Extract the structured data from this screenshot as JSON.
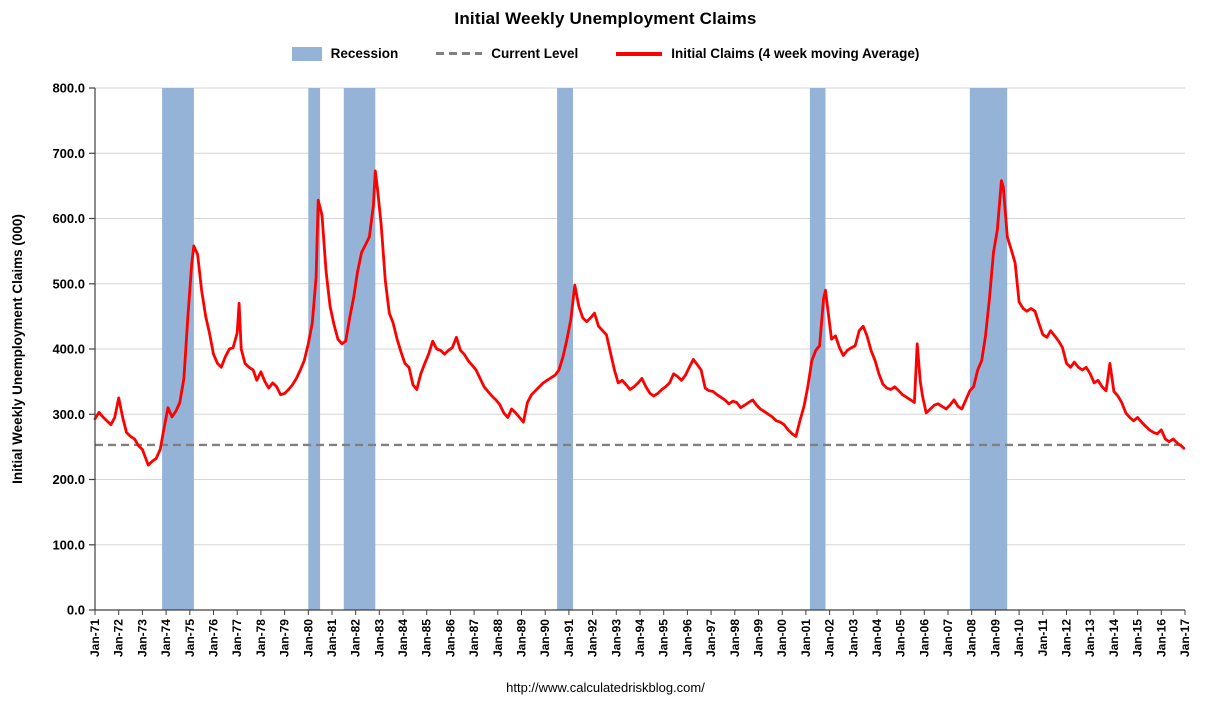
{
  "title": "Initial Weekly Unemployment Claims",
  "footer_url": "http://www.calculatedriskblog.com/",
  "legend": [
    {
      "label": "Recession",
      "type": "band",
      "color": "#95B3D7"
    },
    {
      "label": "Current Level",
      "type": "dashed-line",
      "color": "#808080"
    },
    {
      "label": "Initial Claims (4 week moving Average)",
      "type": "line",
      "color": "#FF0000"
    }
  ],
  "chart_data": {
    "type": "line",
    "title": "Initial Weekly Unemployment Claims",
    "xlabel": "",
    "ylabel": "Initial Weekly Unemployment Claims (000)",
    "ylim": [
      0,
      800
    ],
    "ytick_interval": 100,
    "ytick_labels": [
      "0.0",
      "100.0",
      "200.0",
      "300.0",
      "400.0",
      "500.0",
      "600.0",
      "700.0",
      "800.0"
    ],
    "xlim": [
      1971,
      2017
    ],
    "xtick_labels": [
      "Jan-71",
      "Jan-72",
      "Jan-73",
      "Jan-74",
      "Jan-75",
      "Jan-76",
      "Jan-77",
      "Jan-78",
      "Jan-79",
      "Jan-80",
      "Jan-81",
      "Jan-82",
      "Jan-83",
      "Jan-84",
      "Jan-85",
      "Jan-86",
      "Jan-87",
      "Jan-88",
      "Jan-89",
      "Jan-90",
      "Jan-91",
      "Jan-92",
      "Jan-93",
      "Jan-94",
      "Jan-95",
      "Jan-96",
      "Jan-97",
      "Jan-98",
      "Jan-99",
      "Jan-00",
      "Jan-01",
      "Jan-02",
      "Jan-03",
      "Jan-04",
      "Jan-05",
      "Jan-06",
      "Jan-07",
      "Jan-08",
      "Jan-09",
      "Jan-10",
      "Jan-11",
      "Jan-12",
      "Jan-13",
      "Jan-14",
      "Jan-15",
      "Jan-16",
      "Jan-17"
    ],
    "grid": "horizontal",
    "grid_color": "#D6D6D6",
    "axis_color": "#404040",
    "legend_position": "top",
    "current_level": 253,
    "current_level_color": "#808080",
    "recession_color": "#95B3D7",
    "recessions": [
      [
        1973.83,
        1975.17
      ],
      [
        1980.0,
        1980.5
      ],
      [
        1981.5,
        1982.83
      ],
      [
        1990.5,
        1991.17
      ],
      [
        2001.17,
        2001.83
      ],
      [
        2007.92,
        2009.5
      ]
    ],
    "series": [
      {
        "name": "Initial Claims (4 week moving Average)",
        "color": "#FF0000",
        "points": [
          [
            1971.0,
            293
          ],
          [
            1971.17,
            303
          ],
          [
            1971.33,
            296
          ],
          [
            1971.5,
            290
          ],
          [
            1971.67,
            284
          ],
          [
            1971.83,
            295
          ],
          [
            1972.0,
            325
          ],
          [
            1972.17,
            295
          ],
          [
            1972.33,
            272
          ],
          [
            1972.5,
            266
          ],
          [
            1972.67,
            262
          ],
          [
            1972.83,
            252
          ],
          [
            1973.0,
            246
          ],
          [
            1973.25,
            222
          ],
          [
            1973.42,
            228
          ],
          [
            1973.58,
            232
          ],
          [
            1973.75,
            246
          ],
          [
            1973.92,
            280
          ],
          [
            1974.08,
            310
          ],
          [
            1974.25,
            296
          ],
          [
            1974.42,
            305
          ],
          [
            1974.58,
            318
          ],
          [
            1974.75,
            355
          ],
          [
            1974.92,
            450
          ],
          [
            1975.08,
            530
          ],
          [
            1975.17,
            558
          ],
          [
            1975.33,
            545
          ],
          [
            1975.5,
            490
          ],
          [
            1975.67,
            450
          ],
          [
            1975.83,
            425
          ],
          [
            1976.0,
            392
          ],
          [
            1976.17,
            378
          ],
          [
            1976.33,
            372
          ],
          [
            1976.5,
            388
          ],
          [
            1976.67,
            400
          ],
          [
            1976.83,
            402
          ],
          [
            1977.0,
            425
          ],
          [
            1977.08,
            470
          ],
          [
            1977.17,
            400
          ],
          [
            1977.33,
            378
          ],
          [
            1977.5,
            372
          ],
          [
            1977.67,
            368
          ],
          [
            1977.83,
            352
          ],
          [
            1978.0,
            365
          ],
          [
            1978.17,
            350
          ],
          [
            1978.33,
            340
          ],
          [
            1978.5,
            348
          ],
          [
            1978.67,
            342
          ],
          [
            1978.83,
            330
          ],
          [
            1979.0,
            332
          ],
          [
            1979.17,
            338
          ],
          [
            1979.33,
            345
          ],
          [
            1979.5,
            355
          ],
          [
            1979.67,
            368
          ],
          [
            1979.83,
            382
          ],
          [
            1980.0,
            408
          ],
          [
            1980.17,
            440
          ],
          [
            1980.33,
            510
          ],
          [
            1980.42,
            628
          ],
          [
            1980.58,
            605
          ],
          [
            1980.75,
            520
          ],
          [
            1980.92,
            465
          ],
          [
            1981.08,
            438
          ],
          [
            1981.25,
            415
          ],
          [
            1981.42,
            408
          ],
          [
            1981.58,
            412
          ],
          [
            1981.75,
            448
          ],
          [
            1981.92,
            480
          ],
          [
            1982.08,
            518
          ],
          [
            1982.25,
            548
          ],
          [
            1982.42,
            560
          ],
          [
            1982.58,
            572
          ],
          [
            1982.75,
            620
          ],
          [
            1982.83,
            673
          ],
          [
            1982.92,
            645
          ],
          [
            1983.08,
            590
          ],
          [
            1983.25,
            505
          ],
          [
            1983.42,
            455
          ],
          [
            1983.58,
            440
          ],
          [
            1983.75,
            415
          ],
          [
            1983.92,
            395
          ],
          [
            1984.08,
            378
          ],
          [
            1984.25,
            372
          ],
          [
            1984.42,
            345
          ],
          [
            1984.58,
            338
          ],
          [
            1984.75,
            362
          ],
          [
            1984.92,
            378
          ],
          [
            1985.08,
            392
          ],
          [
            1985.25,
            412
          ],
          [
            1985.42,
            400
          ],
          [
            1985.58,
            398
          ],
          [
            1985.75,
            392
          ],
          [
            1985.92,
            398
          ],
          [
            1986.08,
            402
          ],
          [
            1986.25,
            418
          ],
          [
            1986.42,
            398
          ],
          [
            1986.58,
            392
          ],
          [
            1986.75,
            382
          ],
          [
            1986.92,
            375
          ],
          [
            1987.08,
            368
          ],
          [
            1987.25,
            355
          ],
          [
            1987.42,
            342
          ],
          [
            1987.58,
            335
          ],
          [
            1987.75,
            328
          ],
          [
            1987.92,
            322
          ],
          [
            1988.08,
            315
          ],
          [
            1988.25,
            302
          ],
          [
            1988.42,
            295
          ],
          [
            1988.58,
            308
          ],
          [
            1988.75,
            302
          ],
          [
            1988.92,
            295
          ],
          [
            1989.08,
            288
          ],
          [
            1989.25,
            318
          ],
          [
            1989.42,
            330
          ],
          [
            1989.58,
            336
          ],
          [
            1989.75,
            342
          ],
          [
            1989.92,
            348
          ],
          [
            1990.08,
            352
          ],
          [
            1990.25,
            356
          ],
          [
            1990.42,
            360
          ],
          [
            1990.58,
            368
          ],
          [
            1990.75,
            388
          ],
          [
            1990.92,
            415
          ],
          [
            1991.08,
            445
          ],
          [
            1991.25,
            498
          ],
          [
            1991.42,
            465
          ],
          [
            1991.58,
            448
          ],
          [
            1991.75,
            442
          ],
          [
            1991.92,
            448
          ],
          [
            1992.08,
            455
          ],
          [
            1992.25,
            435
          ],
          [
            1992.42,
            428
          ],
          [
            1992.58,
            422
          ],
          [
            1992.75,
            395
          ],
          [
            1992.92,
            368
          ],
          [
            1993.08,
            348
          ],
          [
            1993.25,
            352
          ],
          [
            1993.42,
            345
          ],
          [
            1993.58,
            338
          ],
          [
            1993.75,
            342
          ],
          [
            1993.92,
            348
          ],
          [
            1994.08,
            355
          ],
          [
            1994.25,
            342
          ],
          [
            1994.42,
            332
          ],
          [
            1994.58,
            328
          ],
          [
            1994.75,
            332
          ],
          [
            1994.92,
            338
          ],
          [
            1995.08,
            342
          ],
          [
            1995.25,
            348
          ],
          [
            1995.42,
            362
          ],
          [
            1995.58,
            358
          ],
          [
            1995.75,
            352
          ],
          [
            1995.92,
            360
          ],
          [
            1996.08,
            372
          ],
          [
            1996.25,
            384
          ],
          [
            1996.42,
            376
          ],
          [
            1996.58,
            368
          ],
          [
            1996.75,
            340
          ],
          [
            1996.92,
            336
          ],
          [
            1997.08,
            335
          ],
          [
            1997.25,
            330
          ],
          [
            1997.42,
            326
          ],
          [
            1997.58,
            322
          ],
          [
            1997.75,
            316
          ],
          [
            1997.92,
            320
          ],
          [
            1998.08,
            318
          ],
          [
            1998.25,
            310
          ],
          [
            1998.42,
            314
          ],
          [
            1998.58,
            318
          ],
          [
            1998.75,
            322
          ],
          [
            1998.92,
            314
          ],
          [
            1999.08,
            308
          ],
          [
            1999.25,
            304
          ],
          [
            1999.42,
            300
          ],
          [
            1999.58,
            296
          ],
          [
            1999.75,
            290
          ],
          [
            1999.92,
            288
          ],
          [
            2000.08,
            284
          ],
          [
            2000.25,
            276
          ],
          [
            2000.42,
            270
          ],
          [
            2000.58,
            266
          ],
          [
            2000.75,
            290
          ],
          [
            2000.92,
            312
          ],
          [
            2001.08,
            342
          ],
          [
            2001.25,
            382
          ],
          [
            2001.42,
            398
          ],
          [
            2001.58,
            405
          ],
          [
            2001.75,
            478
          ],
          [
            2001.83,
            490
          ],
          [
            2001.92,
            462
          ],
          [
            2002.08,
            415
          ],
          [
            2002.25,
            420
          ],
          [
            2002.42,
            402
          ],
          [
            2002.58,
            390
          ],
          [
            2002.75,
            398
          ],
          [
            2002.92,
            402
          ],
          [
            2003.08,
            405
          ],
          [
            2003.25,
            428
          ],
          [
            2003.42,
            435
          ],
          [
            2003.58,
            420
          ],
          [
            2003.75,
            398
          ],
          [
            2003.92,
            382
          ],
          [
            2004.08,
            362
          ],
          [
            2004.25,
            346
          ],
          [
            2004.42,
            340
          ],
          [
            2004.58,
            338
          ],
          [
            2004.75,
            342
          ],
          [
            2004.92,
            336
          ],
          [
            2005.08,
            330
          ],
          [
            2005.25,
            326
          ],
          [
            2005.42,
            322
          ],
          [
            2005.58,
            318
          ],
          [
            2005.7,
            408
          ],
          [
            2005.83,
            350
          ],
          [
            2005.92,
            328
          ],
          [
            2006.08,
            302
          ],
          [
            2006.25,
            308
          ],
          [
            2006.42,
            314
          ],
          [
            2006.58,
            316
          ],
          [
            2006.75,
            312
          ],
          [
            2006.92,
            308
          ],
          [
            2007.08,
            314
          ],
          [
            2007.25,
            322
          ],
          [
            2007.42,
            312
          ],
          [
            2007.58,
            308
          ],
          [
            2007.75,
            322
          ],
          [
            2007.92,
            336
          ],
          [
            2008.08,
            342
          ],
          [
            2008.25,
            368
          ],
          [
            2008.42,
            382
          ],
          [
            2008.58,
            420
          ],
          [
            2008.75,
            478
          ],
          [
            2008.92,
            548
          ],
          [
            2009.08,
            582
          ],
          [
            2009.25,
            658
          ],
          [
            2009.33,
            648
          ],
          [
            2009.5,
            572
          ],
          [
            2009.67,
            552
          ],
          [
            2009.83,
            532
          ],
          [
            2010.0,
            472
          ],
          [
            2010.17,
            462
          ],
          [
            2010.33,
            458
          ],
          [
            2010.5,
            462
          ],
          [
            2010.67,
            458
          ],
          [
            2010.83,
            440
          ],
          [
            2011.0,
            422
          ],
          [
            2011.17,
            418
          ],
          [
            2011.33,
            428
          ],
          [
            2011.5,
            420
          ],
          [
            2011.67,
            412
          ],
          [
            2011.83,
            402
          ],
          [
            2012.0,
            378
          ],
          [
            2012.17,
            372
          ],
          [
            2012.33,
            380
          ],
          [
            2012.5,
            372
          ],
          [
            2012.67,
            368
          ],
          [
            2012.83,
            372
          ],
          [
            2013.0,
            362
          ],
          [
            2013.17,
            348
          ],
          [
            2013.33,
            352
          ],
          [
            2013.5,
            342
          ],
          [
            2013.67,
            336
          ],
          [
            2013.83,
            378
          ],
          [
            2014.0,
            335
          ],
          [
            2014.17,
            328
          ],
          [
            2014.33,
            318
          ],
          [
            2014.5,
            302
          ],
          [
            2014.67,
            295
          ],
          [
            2014.83,
            290
          ],
          [
            2015.0,
            295
          ],
          [
            2015.17,
            288
          ],
          [
            2015.33,
            282
          ],
          [
            2015.5,
            276
          ],
          [
            2015.67,
            272
          ],
          [
            2015.83,
            270
          ],
          [
            2016.0,
            276
          ],
          [
            2016.17,
            262
          ],
          [
            2016.33,
            258
          ],
          [
            2016.5,
            262
          ],
          [
            2016.67,
            256
          ],
          [
            2016.83,
            252
          ],
          [
            2016.95,
            248
          ]
        ]
      }
    ]
  }
}
